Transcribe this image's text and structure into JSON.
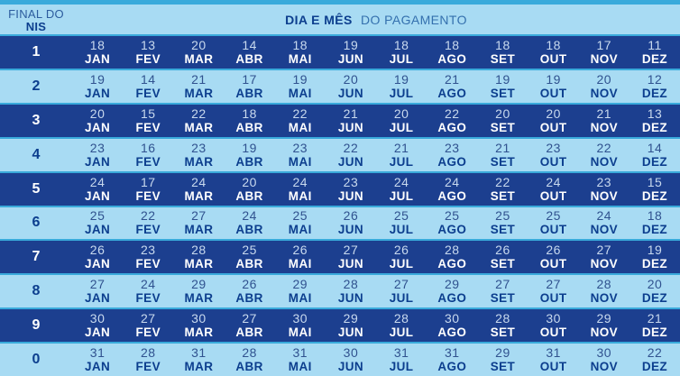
{
  "header": {
    "nis_label_line1": "FINAL DO",
    "nis_label_line2": "NIS",
    "title_bold": "DIA E MÊS",
    "title_regular": "DO PAGAMENTO"
  },
  "colors": {
    "accent_strip_and_gaps": "#39AADB",
    "row_dark_navy": "#1C3F8F",
    "row_light_blue": "#A8DBF3",
    "text_dark_navy": "#0C3E8E",
    "text_white": "#FFFFFF",
    "day_on_dark": "#C8D9EE",
    "day_on_light": "#30528F"
  },
  "chart_data": {
    "type": "table",
    "title": "DIA E MÊS DO PAGAMENTO",
    "row_header": "FINAL DO NIS",
    "columns": [
      "JAN",
      "FEV",
      "MAR",
      "ABR",
      "MAI",
      "JUN",
      "JUL",
      "AGO",
      "SET",
      "OUT",
      "NOV",
      "DEZ"
    ],
    "rows": [
      {
        "nis": "1",
        "days": [
          18,
          13,
          20,
          14,
          18,
          19,
          18,
          18,
          18,
          18,
          17,
          11
        ]
      },
      {
        "nis": "2",
        "days": [
          19,
          14,
          21,
          17,
          19,
          20,
          19,
          21,
          19,
          19,
          20,
          12
        ]
      },
      {
        "nis": "3",
        "days": [
          20,
          15,
          22,
          18,
          22,
          21,
          20,
          22,
          20,
          20,
          21,
          13
        ]
      },
      {
        "nis": "4",
        "days": [
          23,
          16,
          23,
          19,
          23,
          22,
          21,
          23,
          21,
          23,
          22,
          14
        ]
      },
      {
        "nis": "5",
        "days": [
          24,
          17,
          24,
          20,
          24,
          23,
          24,
          24,
          22,
          24,
          23,
          15
        ]
      },
      {
        "nis": "6",
        "days": [
          25,
          22,
          27,
          24,
          25,
          26,
          25,
          25,
          25,
          25,
          24,
          18
        ]
      },
      {
        "nis": "7",
        "days": [
          26,
          23,
          28,
          25,
          26,
          27,
          26,
          28,
          26,
          26,
          27,
          19
        ]
      },
      {
        "nis": "8",
        "days": [
          27,
          24,
          29,
          26,
          29,
          28,
          27,
          29,
          27,
          27,
          28,
          20
        ]
      },
      {
        "nis": "9",
        "days": [
          30,
          27,
          30,
          27,
          30,
          29,
          28,
          30,
          28,
          30,
          29,
          21
        ]
      },
      {
        "nis": "0",
        "days": [
          31,
          28,
          31,
          28,
          31,
          30,
          31,
          31,
          29,
          31,
          30,
          22
        ]
      }
    ]
  }
}
